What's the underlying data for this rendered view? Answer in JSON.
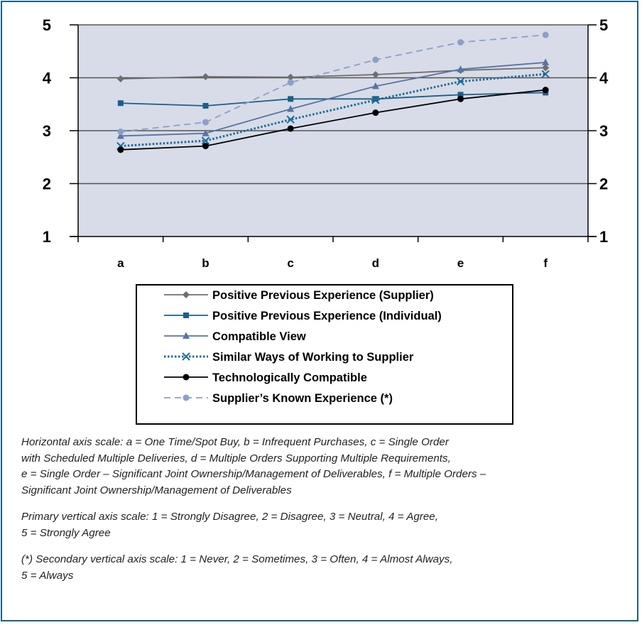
{
  "chart_data": {
    "type": "line",
    "categories": [
      "a",
      "b",
      "c",
      "d",
      "e",
      "f"
    ],
    "ylim": [
      1,
      5
    ],
    "y_ticks": [
      "1",
      "2",
      "3",
      "4",
      "5"
    ],
    "secondary_y_ticks": [
      "1",
      "2",
      "3",
      "4",
      "5"
    ],
    "grid": true,
    "legend_position": "bottom",
    "series": [
      {
        "name": "Positive Previous Experience (Supplier)",
        "values": [
          3.98,
          4.02,
          4.01,
          4.06,
          4.14,
          4.19
        ],
        "color": "#6e6e6e",
        "marker": "diamond",
        "dash": "solid",
        "axis": "primary"
      },
      {
        "name": "Positive Previous Experience (Individual)",
        "values": [
          3.52,
          3.47,
          3.6,
          3.6,
          3.68,
          3.72
        ],
        "color": "#1d5f87",
        "marker": "square",
        "dash": "solid",
        "axis": "primary"
      },
      {
        "name": "Compatible View",
        "values": [
          2.9,
          2.95,
          3.41,
          3.84,
          4.16,
          4.29
        ],
        "color": "#5a73a3",
        "marker": "triangle",
        "dash": "solid",
        "axis": "primary"
      },
      {
        "name": "Similar Ways of Working to Supplier",
        "values": [
          2.71,
          2.81,
          3.21,
          3.58,
          3.93,
          4.07
        ],
        "color": "#1c6a99",
        "marker": "x",
        "dash": "dotted",
        "axis": "primary"
      },
      {
        "name": "Technologically Compatible",
        "values": [
          2.64,
          2.71,
          3.04,
          3.34,
          3.6,
          3.77
        ],
        "color": "#000000",
        "marker": "circle",
        "dash": "solid",
        "axis": "primary"
      },
      {
        "name": "Supplier’s Known Experience (*)",
        "values": [
          2.98,
          3.16,
          3.91,
          4.34,
          4.67,
          4.81
        ],
        "color": "#8d9fc8",
        "marker": "circle",
        "dash": "dashed",
        "axis": "secondary"
      }
    ]
  },
  "notes": [
    [
      "Horizontal axis scale: a = One Time/Spot Buy, b = Infrequent Purchases, c = Single Order",
      "with Scheduled Multiple Deliveries, d = Multiple Orders Supporting Multiple Requirements,",
      "e = Single Order – Significant Joint Ownership/Management of Deliverables, f = Multiple Orders –",
      "Significant Joint Ownership/Management of Deliverables"
    ],
    [
      "Primary vertical axis scale: 1 = Strongly Disagree, 2 = Disagree, 3 = Neutral, 4 = Agree,",
      "5 = Strongly Agree"
    ],
    [
      "(*) Secondary vertical axis scale: 1 = Never, 2 = Sometimes, 3 = Often, 4 = Almost Always,",
      "5 = Always"
    ]
  ]
}
